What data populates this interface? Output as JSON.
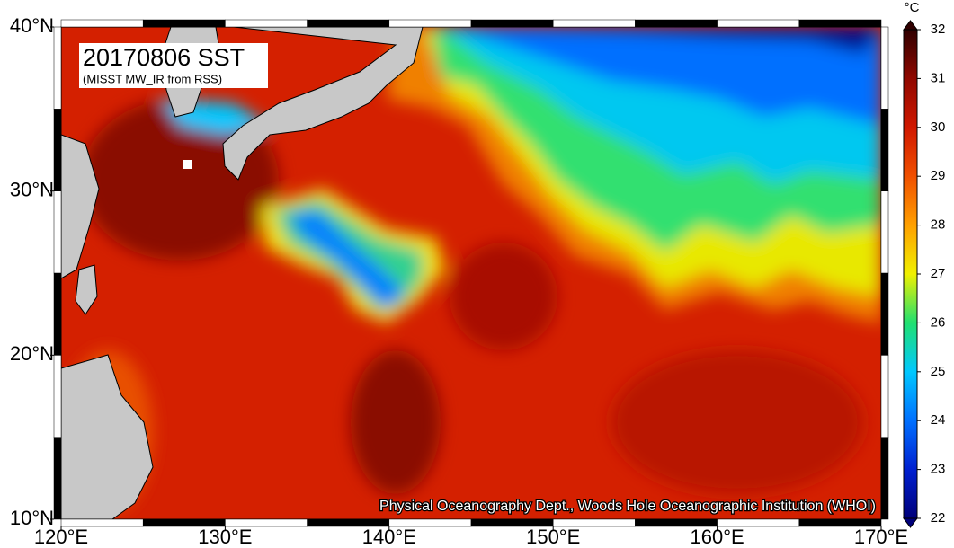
{
  "map": {
    "title": "20170806 SST",
    "subtitle": "(MISST MW_IR from RSS)",
    "credit": "Physical Oceanography Dept., Woods Hole Oceanographic Institution (WHOI)",
    "lon_range": [
      120,
      170
    ],
    "lat_range": [
      10,
      40
    ],
    "lon_ticks": [
      {
        "value": 120,
        "label": "120°E"
      },
      {
        "value": 130,
        "label": "130°E"
      },
      {
        "value": 140,
        "label": "140°E"
      },
      {
        "value": 150,
        "label": "150°E"
      },
      {
        "value": 160,
        "label": "160°E"
      },
      {
        "value": 170,
        "label": "170°E"
      }
    ],
    "lat_ticks": [
      {
        "value": 10,
        "label": "10°N"
      },
      {
        "value": 20,
        "label": "20°N"
      },
      {
        "value": 30,
        "label": "30°N"
      },
      {
        "value": 40,
        "label": "40°N"
      }
    ],
    "colorbar": {
      "unit": "°C",
      "range": [
        22,
        32
      ],
      "ticks": [
        22,
        23,
        24,
        25,
        26,
        27,
        28,
        29,
        30,
        31,
        32
      ],
      "colors": [
        "#00007a",
        "#0020d0",
        "#0070ff",
        "#00c8ff",
        "#20e070",
        "#f0f000",
        "#ffa000",
        "#f05000",
        "#d01800",
        "#900800",
        "#300000"
      ]
    }
  }
}
